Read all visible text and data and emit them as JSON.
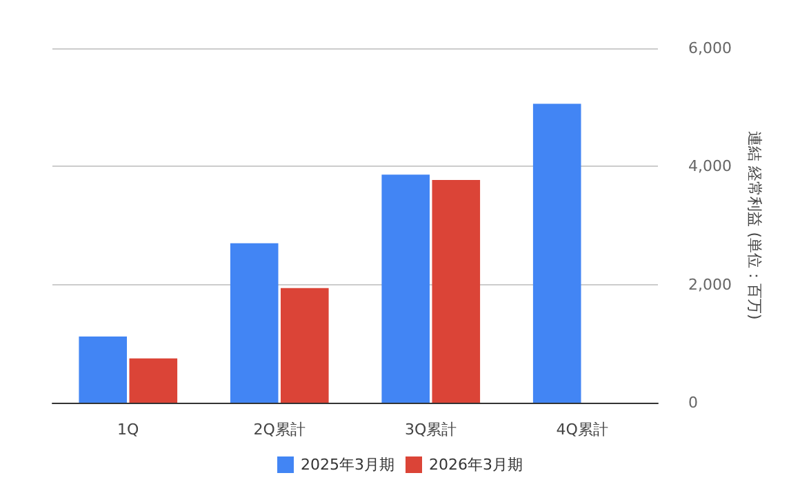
{
  "chart_data": {
    "type": "bar",
    "categories": [
      "1Q",
      "2Q累計",
      "3Q累計",
      "4Q累計"
    ],
    "series": [
      {
        "name": "2025年3月期",
        "color": "#4285f4",
        "values": [
          1120,
          2700,
          3860,
          5060
        ]
      },
      {
        "name": "2026年3月期",
        "color": "#db4437",
        "values": [
          750,
          1940,
          3770,
          null
        ]
      }
    ],
    "ylabel": "連結 経常利益 (単位：百万)",
    "ylim": [
      0,
      6000
    ],
    "yticks": [
      {
        "value": 0,
        "label": "0"
      },
      {
        "value": 2000,
        "label": "2,000"
      },
      {
        "value": 4000,
        "label": "4,000"
      },
      {
        "value": 6000,
        "label": "6,000"
      }
    ],
    "grid": "y",
    "legend": "bottom"
  }
}
